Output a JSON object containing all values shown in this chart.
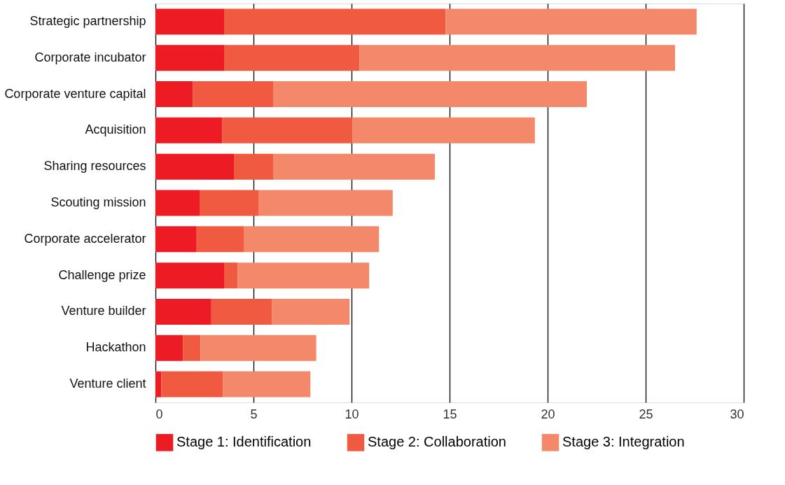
{
  "chart_data": {
    "type": "bar",
    "orientation": "horizontal",
    "stacked": true,
    "categories": [
      "Strategic partnership",
      "Corporate incubator",
      "Corporate venture capital",
      "Acquisition",
      "Sharing resources",
      "Scouting mission",
      "Corporate accelerator",
      "Challenge prize",
      "Venture builder",
      "Hackathon",
      "Venture client"
    ],
    "series": [
      {
        "name": "Stage 1: Identification",
        "color": "#ed1c24",
        "values": [
          3.5,
          3.5,
          1.9,
          3.4,
          4.0,
          2.25,
          2.1,
          3.5,
          2.85,
          1.4,
          0.3
        ]
      },
      {
        "name": "Stage 2: Collaboration",
        "color": "#f05a40",
        "values": [
          11.3,
          6.9,
          4.1,
          6.65,
          2.0,
          3.0,
          2.4,
          0.7,
          3.1,
          0.9,
          3.15
        ]
      },
      {
        "name": "Stage 3: Integration",
        "color": "#f4886a",
        "values": [
          12.8,
          16.1,
          16.0,
          9.3,
          8.25,
          6.85,
          6.9,
          6.7,
          3.95,
          5.9,
          4.45
        ]
      }
    ],
    "xlim": [
      0,
      30
    ],
    "xticks": [
      0,
      5,
      10,
      15,
      20,
      25,
      30
    ],
    "grid": "x",
    "legend": "bottom"
  }
}
